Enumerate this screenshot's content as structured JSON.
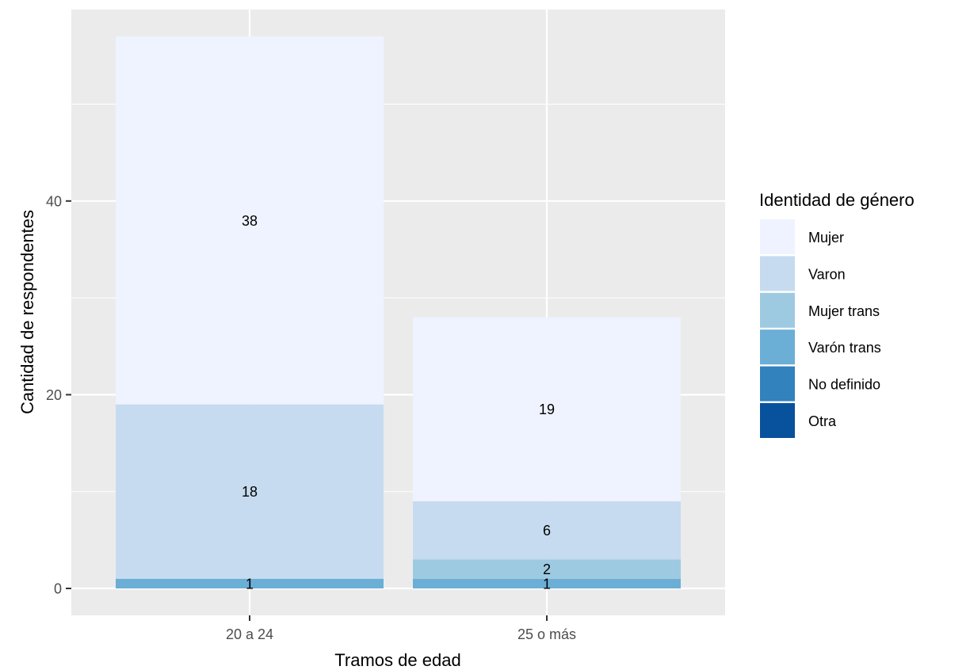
{
  "chart_data": {
    "type": "bar",
    "stacked": true,
    "xlabel": "Tramos de edad",
    "ylabel": "Cantidad de respondentes",
    "categories": [
      "20 a 24",
      "25 o más"
    ],
    "ylim": [
      0,
      57
    ],
    "yticks": [
      0,
      20,
      40
    ],
    "grid": true,
    "legend": {
      "title": "Identidad de género",
      "placement": "right"
    },
    "series": [
      {
        "name": "Mujer",
        "color": "#eff3ff",
        "values": [
          38,
          19
        ]
      },
      {
        "name": "Varon",
        "color": "#c6dbef",
        "values": [
          18,
          6
        ]
      },
      {
        "name": "Mujer trans",
        "color": "#9ecae1",
        "values": [
          0,
          2
        ]
      },
      {
        "name": "Varón trans",
        "color": "#6baed6",
        "values": [
          1,
          1
        ]
      },
      {
        "name": "No definido",
        "color": "#3182bd",
        "values": [
          0,
          0
        ]
      },
      {
        "name": "Otra",
        "color": "#08519c",
        "values": [
          0,
          0
        ]
      }
    ],
    "data_labels": [
      {
        "category": "20 a 24",
        "series": "Mujer",
        "text": "38"
      },
      {
        "category": "20 a 24",
        "series": "Varon",
        "text": "18"
      },
      {
        "category": "20 a 24",
        "series": "Varón trans",
        "text": "1"
      },
      {
        "category": "25 o más",
        "series": "Mujer",
        "text": "19"
      },
      {
        "category": "25 o más",
        "series": "Varon",
        "text": "6"
      },
      {
        "category": "25 o más",
        "series": "Mujer trans",
        "text": "2"
      },
      {
        "category": "25 o más",
        "series": "Varón trans",
        "text": "1"
      }
    ]
  }
}
